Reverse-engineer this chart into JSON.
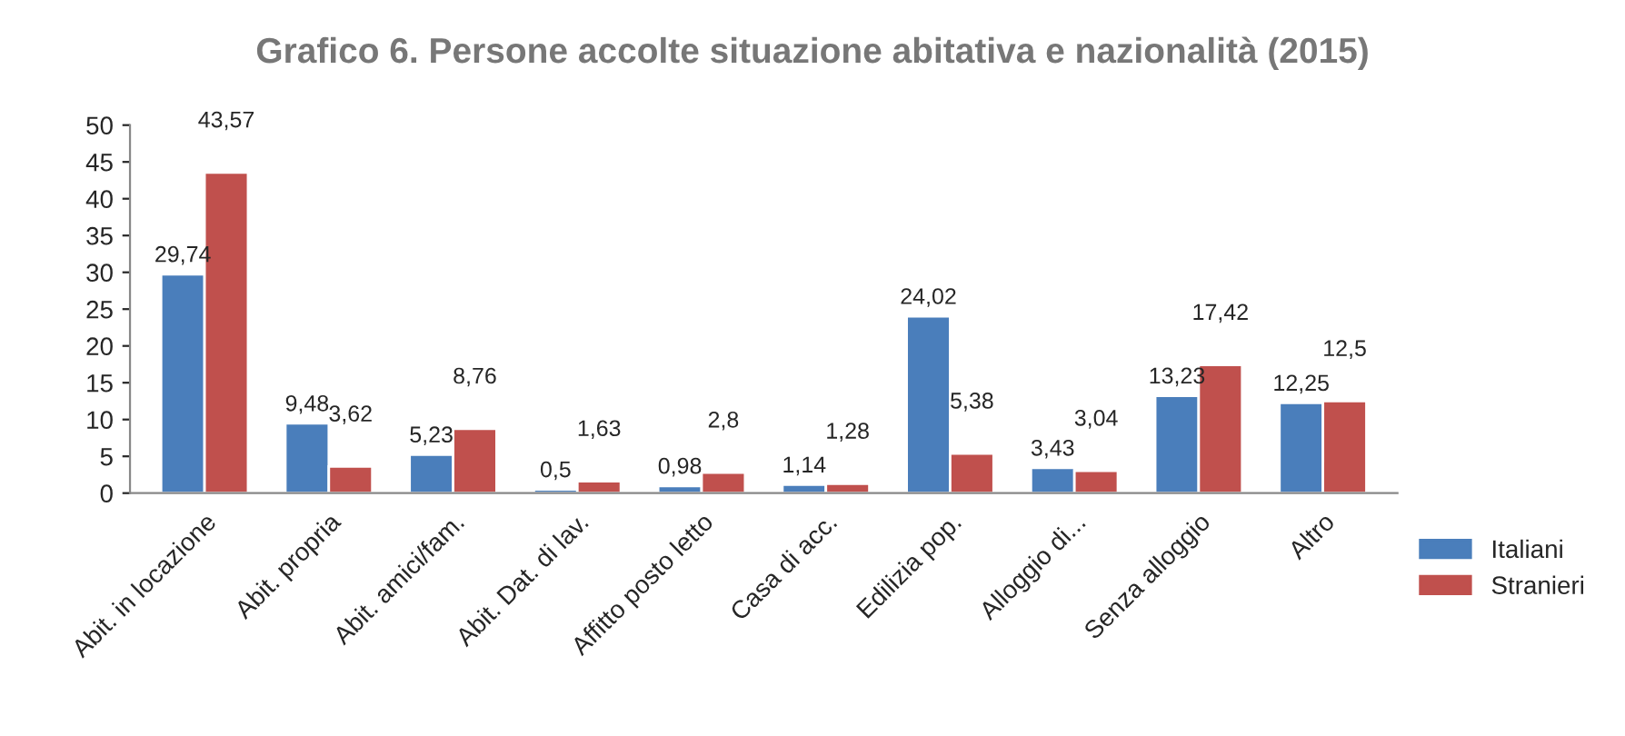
{
  "chart_data": {
    "type": "bar",
    "title": "Grafico 6. Persone accolte situazione abitativa e nazionalità (2015)",
    "categories": [
      "Abit. in locazione",
      "Abit. propria",
      "Abit. amici/fam.",
      "Abit. Dat. di lav.",
      "Affitto posto letto",
      "Casa di acc.",
      "Edilizia pop.",
      "Alloggio di...",
      "Senza alloggio",
      "Altro"
    ],
    "series": [
      {
        "name": "Italiani",
        "color": "#4a7ebb",
        "values": [
          29.74,
          9.48,
          5.23,
          0.5,
          0.98,
          1.14,
          24.02,
          3.43,
          13.23,
          12.25
        ],
        "value_labels": [
          "29,74",
          "9,48",
          "5,23",
          "0,5",
          "0,98",
          "1,14",
          "24,02",
          "3,43",
          "13,23",
          "12,25"
        ]
      },
      {
        "name": "Stranieri",
        "color": "#c0504d",
        "values": [
          43.57,
          3.62,
          8.76,
          1.63,
          2.8,
          1.28,
          5.38,
          3.04,
          17.42,
          12.5
        ],
        "value_labels": [
          "43,57",
          "3,62",
          "8,76",
          "1,63",
          "2,8",
          "1,28",
          "5,38",
          "3,04",
          "17,42",
          "12,5"
        ]
      }
    ],
    "ylim": [
      0,
      50
    ],
    "yticks": [
      0,
      5,
      10,
      15,
      20,
      25,
      30,
      35,
      40,
      45,
      50
    ],
    "grid": false,
    "legend": "bottom right"
  }
}
